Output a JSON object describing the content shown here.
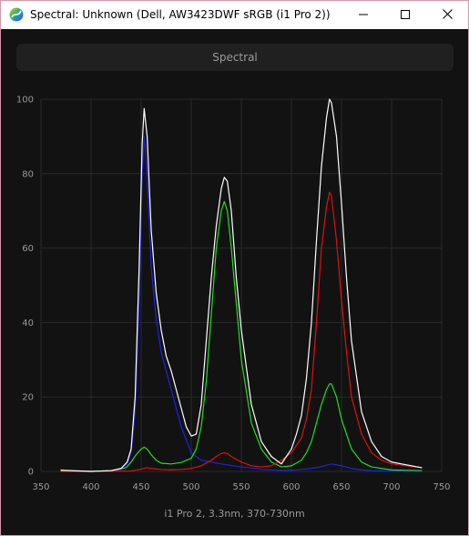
{
  "window": {
    "title": "Spectral: Unknown (Dell, AW3423DWF sRGB (i1 Pro 2))"
  },
  "header": {
    "label": "Spectral"
  },
  "caption": "i1 Pro 2, 3.3nm, 370-730nm",
  "colors": {
    "background": "#121212",
    "grid": "#2a2a2a",
    "white_series": "#ffffff",
    "red_series": "#e01010",
    "green_series": "#20e020",
    "blue_series": "#2020e8",
    "window_border": "#d49aa9"
  },
  "icons": {
    "app": "spectral-app-icon",
    "minimize": "minimize-icon",
    "maximize": "maximize-icon",
    "close": "close-icon"
  },
  "chart_data": {
    "type": "line",
    "title": "",
    "xlabel": "",
    "ylabel": "",
    "xlim": [
      350,
      750
    ],
    "ylim": [
      0,
      100
    ],
    "xticks": [
      350,
      400,
      450,
      500,
      550,
      600,
      650,
      700,
      750
    ],
    "yticks": [
      0,
      20,
      40,
      60,
      80,
      100
    ],
    "grid": true,
    "legend": "none",
    "series": [
      {
        "color": "#2020e8",
        "x": [
          370,
          400,
          420,
          430,
          436,
          440,
          444,
          448,
          451,
          453,
          456,
          460,
          465,
          470,
          475,
          480,
          490,
          500,
          510,
          520,
          530,
          540,
          550,
          560,
          570,
          580,
          590,
          600,
          610,
          620,
          630,
          640,
          650,
          660,
          670,
          680,
          700,
          730
        ],
        "y": [
          0,
          0,
          0,
          0.5,
          2,
          5,
          16,
          45,
          80,
          90,
          80,
          55,
          41,
          32,
          27,
          22,
          12,
          5,
          3,
          2.5,
          2,
          1.6,
          1.2,
          0.9,
          0.6,
          0.4,
          0.3,
          0.3,
          0.5,
          0.8,
          1.3,
          2,
          1.5,
          0.8,
          0.4,
          0.2,
          0.1,
          0
        ]
      },
      {
        "color": "#20e020",
        "x": [
          370,
          380,
          400,
          420,
          435,
          440,
          445,
          450,
          453,
          456,
          460,
          465,
          470,
          480,
          490,
          500,
          505,
          510,
          515,
          520,
          525,
          530,
          533,
          536,
          540,
          545,
          550,
          560,
          570,
          580,
          590,
          600,
          610,
          615,
          620,
          625,
          630,
          635,
          638,
          640,
          645,
          650,
          660,
          670,
          680,
          700,
          730
        ],
        "y": [
          0.3,
          0.1,
          0,
          0.2,
          1,
          2.5,
          4.5,
          6,
          6.5,
          6,
          4.5,
          3,
          2.2,
          2,
          2.4,
          3.5,
          6,
          12,
          24,
          42,
          60,
          70,
          72.5,
          70,
          60,
          45,
          30,
          13,
          6,
          2.5,
          1.2,
          1.5,
          3,
          5,
          8,
          13,
          18,
          22,
          23.5,
          23.5,
          20,
          14,
          6,
          2.5,
          1.2,
          0.4,
          0.2
        ]
      },
      {
        "color": "#e01010",
        "x": [
          370,
          400,
          440,
          450,
          455,
          460,
          470,
          480,
          490,
          500,
          510,
          520,
          525,
          530,
          533,
          536,
          540,
          550,
          560,
          570,
          580,
          590,
          600,
          610,
          615,
          620,
          625,
          630,
          635,
          638,
          640,
          645,
          650,
          655,
          660,
          670,
          680,
          690,
          700,
          730
        ],
        "y": [
          0,
          0,
          0.1,
          0.6,
          1,
          0.8,
          0.5,
          0.4,
          0.5,
          0.8,
          1.5,
          3,
          4,
          4.8,
          5,
          4.8,
          4,
          2.5,
          1.5,
          1.2,
          1.5,
          3,
          5,
          9,
          14,
          22,
          40,
          60,
          71,
          75,
          74,
          62,
          46,
          32,
          20,
          10,
          5,
          3,
          2,
          1
        ]
      },
      {
        "color": "#ffffff",
        "x": [
          370,
          400,
          420,
          430,
          436,
          440,
          444,
          448,
          451,
          453,
          456,
          460,
          465,
          470,
          475,
          480,
          490,
          495,
          500,
          505,
          510,
          515,
          520,
          525,
          530,
          533,
          536,
          540,
          545,
          550,
          560,
          570,
          580,
          590,
          600,
          605,
          610,
          615,
          620,
          625,
          630,
          635,
          638,
          640,
          645,
          650,
          655,
          660,
          670,
          680,
          690,
          700,
          730
        ],
        "y": [
          0.3,
          0,
          0.2,
          0.8,
          2.5,
          6,
          20,
          55,
          88,
          97.5,
          90,
          65,
          48,
          38,
          31,
          27,
          17,
          12,
          9.5,
          10,
          18,
          35,
          52,
          66,
          76,
          79,
          78,
          70,
          52,
          38,
          18,
          8,
          4,
          2,
          6,
          10,
          15,
          25,
          40,
          62,
          82,
          95,
          100,
          99,
          90,
          72,
          52,
          35,
          16,
          8,
          4,
          2.5,
          1
        ]
      }
    ]
  }
}
